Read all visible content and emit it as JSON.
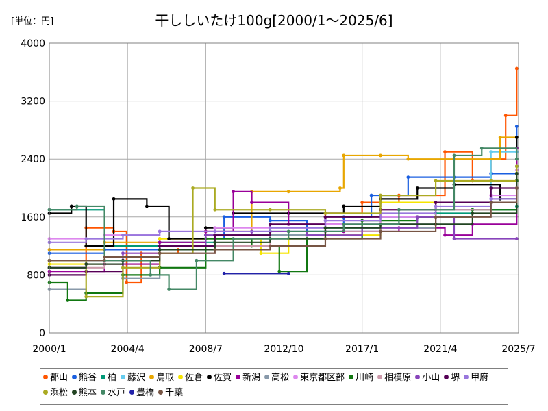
{
  "unit_label": "[単位：円]",
  "chart_data": {
    "type": "line",
    "title": "干ししいたけ100g[2000/1～2025/6]",
    "xlabel": "",
    "ylabel": "",
    "xlim": [
      2000.0,
      2025.5
    ],
    "ylim": [
      0,
      4000
    ],
    "y_ticks": [
      0,
      800,
      1600,
      2400,
      3200,
      4000
    ],
    "y_tick_labels": [
      "0",
      "800",
      "1600",
      "2400",
      "3200",
      "4000"
    ],
    "x_ticks": [
      2000.0,
      2004.25,
      2008.5,
      2012.75,
      2017.0,
      2021.25,
      2025.5
    ],
    "x_tick_labels": [
      "2000/1",
      "2004/4",
      "2008/7",
      "2012/10",
      "2017/1",
      "2021/4",
      "2025/7"
    ],
    "grid": true,
    "legend_position": "bottom",
    "series": [
      {
        "name": "郡山",
        "color": "#ff5500",
        "x": [
          2000,
          2002,
          2003.5,
          2004.2,
          2005,
          2007,
          2009,
          2012,
          2015,
          2017,
          2019,
          2021.5,
          2023,
          2024,
          2024.8,
          2025.4
        ],
        "y": [
          1000,
          1450,
          1400,
          700,
          1100,
          1150,
          1300,
          1350,
          1650,
          1800,
          1900,
          2500,
          2100,
          2400,
          3000,
          3650
        ]
      },
      {
        "name": "熊谷",
        "color": "#1a5fe0",
        "x": [
          2000,
          2003,
          2006,
          2008.5,
          2009.5,
          2012,
          2014,
          2016,
          2017.5,
          2019.5,
          2022,
          2024,
          2025.4
        ],
        "y": [
          1100,
          1150,
          1200,
          1300,
          1600,
          1550,
          1400,
          1600,
          1900,
          2150,
          2150,
          2200,
          2850
        ]
      },
      {
        "name": "柏",
        "color": "#009977",
        "x": [
          2000,
          2003,
          2006,
          2009,
          2012,
          2015,
          2018,
          2021,
          2023,
          2025.4
        ],
        "y": [
          1700,
          1200,
          1250,
          1350,
          1400,
          1450,
          1600,
          1650,
          1700,
          1750
        ]
      },
      {
        "name": "藤沢",
        "color": "#66ccee",
        "x": [
          2000,
          2003,
          2006,
          2009,
          2012,
          2015,
          2018,
          2021,
          2024,
          2025.4
        ],
        "y": [
          1000,
          1050,
          1150,
          1300,
          1350,
          1400,
          1500,
          1700,
          2500,
          2500
        ]
      },
      {
        "name": "鳥取",
        "color": "#e8a600",
        "x": [
          2000,
          2003,
          2006,
          2008.5,
          2011,
          2013,
          2015.8,
          2016,
          2018,
          2019.5,
          2022,
          2024.5,
          2025.4
        ],
        "y": [
          1150,
          1250,
          1300,
          1400,
          1950,
          1950,
          2000,
          2450,
          2450,
          2400,
          2400,
          2700,
          2700
        ]
      },
      {
        "name": "佐倉",
        "color": "#f5e400",
        "x": [
          2000,
          2003,
          2006,
          2008.5,
          2011.5,
          2013,
          2015,
          2018,
          2021,
          2025.4
        ],
        "y": [
          950,
          950,
          1300,
          1300,
          1100,
          1300,
          1350,
          1800,
          1800,
          2100
        ]
      },
      {
        "name": "佐賀",
        "color": "#000000",
        "x": [
          2000,
          2001.2,
          2002,
          2003.5,
          2005.3,
          2006.5,
          2008.5,
          2010,
          2013,
          2016,
          2018,
          2020,
          2022,
          2024.5,
          2025.4
        ],
        "y": [
          1650,
          1750,
          1200,
          1850,
          1750,
          1300,
          1450,
          1650,
          1650,
          1750,
          1850,
          2000,
          2050,
          1850,
          2700
        ]
      },
      {
        "name": "新潟",
        "color": "#990099",
        "x": [
          2000,
          2003,
          2006,
          2008.5,
          2010,
          2011,
          2013,
          2016,
          2019,
          2021.5,
          2023,
          2025.4
        ],
        "y": [
          850,
          950,
          1250,
          1400,
          1950,
          1800,
          1500,
          1400,
          1450,
          1350,
          1500,
          2550
        ]
      },
      {
        "name": "高松",
        "color": "#8899aa",
        "x": [
          2000,
          2002,
          2004,
          2006,
          2009,
          2012,
          2015,
          2018,
          2021,
          2024,
          2025.4
        ],
        "y": [
          600,
          550,
          750,
          1200,
          1300,
          1350,
          1400,
          1450,
          1700,
          1800,
          2300
        ]
      },
      {
        "name": "東京都区部",
        "color": "#dd88ee",
        "x": [
          2000,
          2003,
          2006,
          2009,
          2012,
          2015,
          2018,
          2021,
          2024,
          2025.4
        ],
        "y": [
          1300,
          1350,
          1400,
          1450,
          1450,
          1500,
          1600,
          1800,
          1900,
          2250
        ]
      },
      {
        "name": "川崎",
        "color": "#117711",
        "x": [
          2000,
          2001,
          2002,
          2004,
          2006,
          2008.5,
          2011,
          2012.5,
          2014,
          2017,
          2020,
          2023,
          2025.4
        ],
        "y": [
          700,
          450,
          550,
          800,
          900,
          1300,
          1200,
          850,
          1300,
          1550,
          1600,
          1700,
          2100
        ]
      },
      {
        "name": "相模原",
        "color": "#cc99aa",
        "x": [
          2000,
          2003,
          2006,
          2009,
          2012,
          2015,
          2018,
          2021,
          2024,
          2025.4
        ],
        "y": [
          900,
          1000,
          1100,
          1200,
          1300,
          1400,
          1500,
          1700,
          1800,
          2000
        ]
      },
      {
        "name": "小山",
        "color": "#8844bb",
        "x": [
          2000,
          2002,
          2004,
          2006,
          2008.5,
          2011,
          2014,
          2017,
          2020,
          2022,
          2025.4
        ],
        "y": [
          900,
          950,
          1100,
          1200,
          1350,
          1400,
          1350,
          1450,
          1600,
          1300,
          1300
        ]
      },
      {
        "name": "堺",
        "color": "#550055",
        "x": [
          2000,
          2002,
          2004,
          2006,
          2009,
          2012,
          2015,
          2018,
          2021,
          2024,
          2025.4
        ],
        "y": [
          800,
          850,
          1000,
          1200,
          1350,
          1500,
          1600,
          1700,
          1800,
          2000,
          2200
        ]
      },
      {
        "name": "甲府",
        "color": "#9977dd",
        "x": [
          2000,
          2002,
          2004,
          2006,
          2009,
          2012,
          2015,
          2018,
          2021,
          2024,
          2025.4
        ],
        "y": [
          1250,
          1300,
          1350,
          1400,
          1400,
          1450,
          1550,
          1650,
          1750,
          1850,
          2300
        ]
      },
      {
        "name": "浜松",
        "color": "#aaaa22",
        "x": [
          2000,
          2002,
          2004,
          2006,
          2007.8,
          2009,
          2012,
          2015,
          2018,
          2021,
          2024,
          2025.4
        ],
        "y": [
          1000,
          500,
          900,
          1100,
          2000,
          1700,
          1700,
          1650,
          1900,
          2100,
          2100,
          2300
        ]
      },
      {
        "name": "熊本",
        "color": "#224422",
        "x": [
          2000,
          2002,
          2004,
          2006,
          2009,
          2012,
          2015,
          2018,
          2021,
          2023,
          2025.4
        ],
        "y": [
          900,
          950,
          1000,
          1150,
          1250,
          1300,
          1450,
          1500,
          1500,
          1650,
          2200
        ]
      },
      {
        "name": "水戸",
        "color": "#448866",
        "x": [
          2000,
          2001.5,
          2003,
          2005.5,
          2006.5,
          2008,
          2010,
          2013,
          2016,
          2019,
          2022,
          2023.5,
          2025.4
        ],
        "y": [
          1700,
          1750,
          1000,
          800,
          600,
          1000,
          1300,
          1400,
          1500,
          1700,
          2450,
          2550,
          2400
        ]
      },
      {
        "name": "豊橋",
        "color": "#2222aa",
        "x": [
          2009.5,
          2013
        ],
        "y": [
          820,
          820
        ]
      },
      {
        "name": "千葉",
        "color": "#775544",
        "x": [
          2000,
          2003,
          2006,
          2009,
          2012,
          2015,
          2018,
          2021,
          2024,
          2025.4
        ],
        "y": [
          1000,
          1050,
          1100,
          1150,
          1200,
          1300,
          1400,
          1600,
          1800,
          2000
        ]
      }
    ]
  }
}
